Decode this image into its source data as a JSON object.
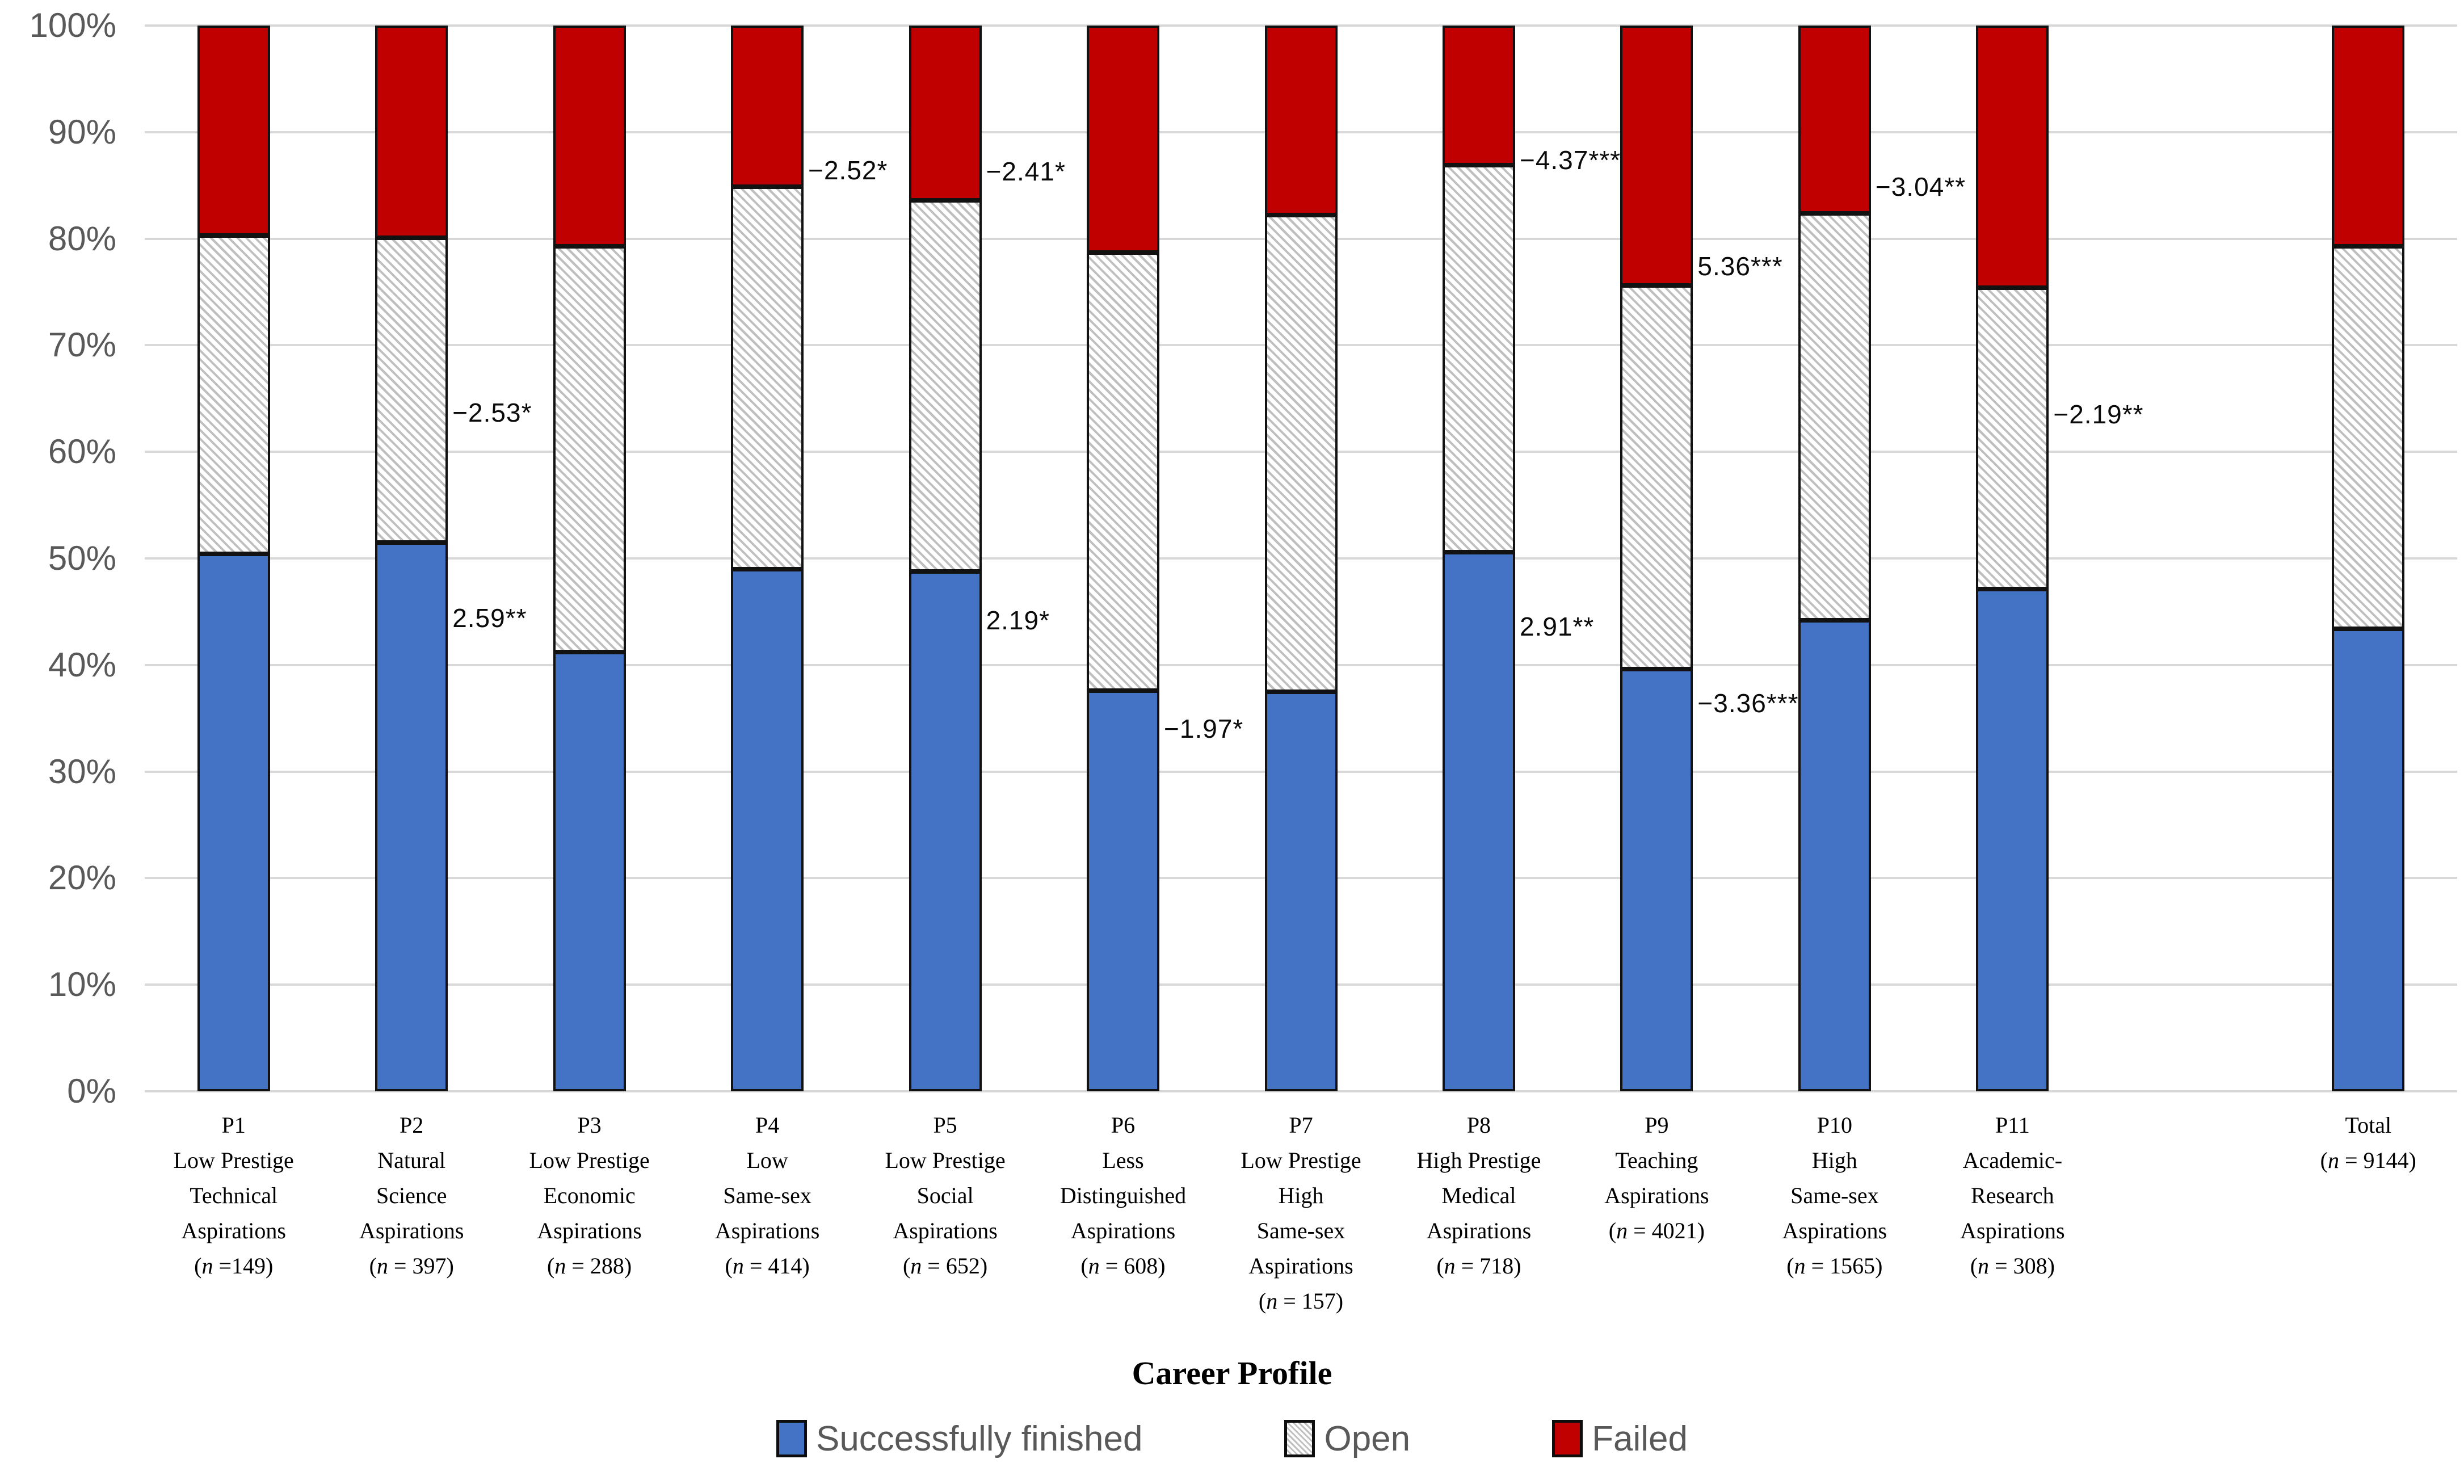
{
  "chart_data": {
    "type": "bar",
    "stacked": true,
    "value_unit": "percent",
    "title": "",
    "xlabel": "Career Profile",
    "ylabel": "",
    "ylim": [
      0,
      100
    ],
    "grid": "horizontal",
    "legend_position": "bottom",
    "yticks": [
      "0%",
      "10%",
      "20%",
      "30%",
      "40%",
      "50%",
      "60%",
      "70%",
      "80%",
      "90%",
      "100%"
    ],
    "legend": [
      {
        "label": "Successfully finished",
        "color": "#4472C4",
        "pattern": "solid"
      },
      {
        "label": "Open",
        "color": "#FFFFFF",
        "pattern": "diagonal-hatch"
      },
      {
        "label": "Failed",
        "color": "#C00000",
        "pattern": "solid"
      }
    ],
    "colors": {
      "blue": "#4472C4",
      "red": "#C00000",
      "hatch_line": "#BFBFBF",
      "gridline": "#D9D9D9",
      "tick_text": "#595959",
      "label_text": "#000000",
      "legend_text": "#595959"
    },
    "categories": [
      {
        "id": "P1",
        "lines": [
          "P1",
          "Low Prestige",
          "Technical",
          "Aspirations"
        ],
        "n_label": "(n =149)"
      },
      {
        "id": "P2",
        "lines": [
          "P2",
          "Natural",
          "Science",
          "Aspirations"
        ],
        "n_label": "(n = 397)"
      },
      {
        "id": "P3",
        "lines": [
          "P3",
          "Low Prestige",
          "Economic",
          "Aspirations"
        ],
        "n_label": "(n = 288)"
      },
      {
        "id": "P4",
        "lines": [
          "P4",
          "Low",
          "Same-sex",
          "Aspirations"
        ],
        "n_label": "(n = 414)"
      },
      {
        "id": "P5",
        "lines": [
          "P5",
          "Low Prestige",
          "Social",
          "Aspirations"
        ],
        "n_label": "(n = 652)"
      },
      {
        "id": "P6",
        "lines": [
          "P6",
          "Less",
          "Distinguished",
          "Aspirations"
        ],
        "n_label": "(n = 608)"
      },
      {
        "id": "P7",
        "lines": [
          "P7",
          "Low Prestige",
          "High",
          "Same-sex",
          "Aspirations"
        ],
        "n_label": "(n = 157)"
      },
      {
        "id": "P8",
        "lines": [
          "P8",
          "High Prestige",
          "Medical",
          "Aspirations"
        ],
        "n_label": "(n = 718)"
      },
      {
        "id": "P9",
        "lines": [
          "P9",
          "Teaching",
          "Aspirations"
        ],
        "n_label": "(n = 4021)"
      },
      {
        "id": "P10",
        "lines": [
          "P10",
          "High",
          "Same-sex",
          "Aspirations"
        ],
        "n_label": "(n = 1565)"
      },
      {
        "id": "P11",
        "lines": [
          "P11",
          "Academic-",
          "Research",
          "Aspirations"
        ],
        "n_label": "(n = 308)"
      },
      {
        "id": "",
        "spacer": true,
        "lines": [],
        "n_label": ""
      },
      {
        "id": "Total",
        "lines": [
          "Total"
        ],
        "n_label": "(n = 9144)"
      }
    ],
    "series": [
      {
        "name": "Successfully finished",
        "values": [
          50.4,
          51.5,
          41.2,
          49.0,
          48.8,
          37.6,
          37.5,
          50.6,
          39.6,
          44.2,
          47.1,
          null,
          43.4
        ]
      },
      {
        "name": "Open",
        "values": [
          29.9,
          28.6,
          38.1,
          35.9,
          34.8,
          41.1,
          44.7,
          36.3,
          36.0,
          38.2,
          28.3,
          null,
          35.9
        ]
      },
      {
        "name": "Failed",
        "values": [
          19.7,
          19.9,
          20.7,
          15.1,
          16.4,
          21.3,
          17.8,
          13.1,
          24.4,
          17.6,
          24.6,
          null,
          20.7
        ]
      }
    ],
    "annotations": [
      {
        "bar": "P2",
        "text": "−2.53*",
        "y": 63.7
      },
      {
        "bar": "P2",
        "text": "2.59**",
        "y": 44.4
      },
      {
        "bar": "P4",
        "text": "−2.52*",
        "y": 86.4
      },
      {
        "bar": "P5",
        "text": "−2.41*",
        "y": 86.3
      },
      {
        "bar": "P5",
        "text": "2.19*",
        "y": 44.2
      },
      {
        "bar": "P6",
        "text": "−1.97*",
        "y": 34.0
      },
      {
        "bar": "P8",
        "text": "−4.37***",
        "y": 87.4
      },
      {
        "bar": "P8",
        "text": "2.91**",
        "y": 43.6
      },
      {
        "bar": "P9",
        "text": "5.36***",
        "y": 77.4
      },
      {
        "bar": "P9",
        "text": "−3.36***",
        "y": 36.4
      },
      {
        "bar": "P10",
        "text": "−3.04**",
        "y": 84.9
      },
      {
        "bar": "P11",
        "text": "−2.19**",
        "y": 63.5
      }
    ]
  }
}
